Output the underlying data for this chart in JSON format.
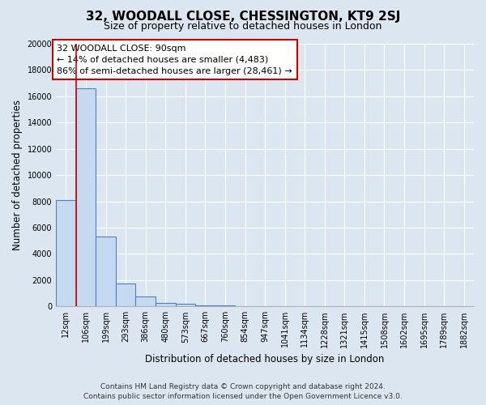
{
  "title": "32, WOODALL CLOSE, CHESSINGTON, KT9 2SJ",
  "subtitle": "Size of property relative to detached houses in London",
  "xlabel": "Distribution of detached houses by size in London",
  "ylabel": "Number of detached properties",
  "bin_labels": [
    "12sqm",
    "106sqm",
    "199sqm",
    "293sqm",
    "386sqm",
    "480sqm",
    "573sqm",
    "667sqm",
    "760sqm",
    "854sqm",
    "947sqm",
    "1041sqm",
    "1134sqm",
    "1228sqm",
    "1321sqm",
    "1415sqm",
    "1508sqm",
    "1602sqm",
    "1695sqm",
    "1789sqm",
    "1882sqm"
  ],
  "bar_values": [
    8100,
    16600,
    5300,
    1750,
    750,
    280,
    180,
    100,
    70,
    0,
    0,
    0,
    0,
    0,
    0,
    0,
    0,
    0,
    0,
    0,
    0
  ],
  "bar_color": "#c5d9f1",
  "bar_edge_color": "#4f81bd",
  "property_line_color": "#cc0000",
  "annotation_line1": "32 WOODALL CLOSE: 90sqm",
  "annotation_line2": "← 14% of detached houses are smaller (4,483)",
  "annotation_line3": "86% of semi-detached houses are larger (28,461) →",
  "footer_line1": "Contains HM Land Registry data © Crown copyright and database right 2024.",
  "footer_line2": "Contains public sector information licensed under the Open Government Licence v3.0.",
  "ylim": [
    0,
    20000
  ],
  "yticks": [
    0,
    2000,
    4000,
    6000,
    8000,
    10000,
    12000,
    14000,
    16000,
    18000,
    20000
  ],
  "bg_color": "#dce6f1",
  "plot_bg_color": "#dce6f1",
  "grid_color": "#ffffff",
  "title_fontsize": 11,
  "subtitle_fontsize": 9,
  "axis_label_fontsize": 8.5,
  "tick_fontsize": 7,
  "annotation_fontsize": 8,
  "footer_fontsize": 6.5
}
